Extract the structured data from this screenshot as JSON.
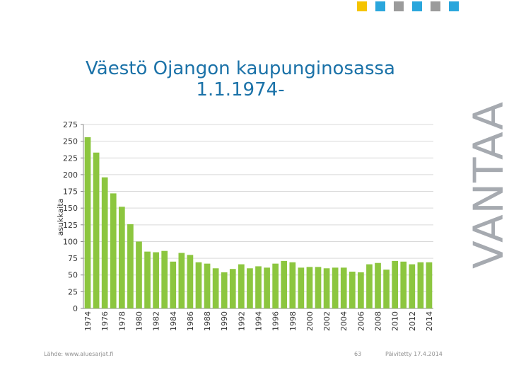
{
  "slide": {
    "title_line1": "Väestö Ojangon kaupunginosassa",
    "title_line2": "1.1.1974-",
    "brand": "VANTAA",
    "source": "Lähde: www.aluesarjat.fi",
    "page_number": "63",
    "updated": "Päivitetty 17.4.2014",
    "colors": [
      "#f5c400",
      "#2aa6dc",
      "#9b9b9b",
      "#2aa6dc",
      "#9b9b9b",
      "#2aa6dc"
    ]
  },
  "chart_data": {
    "type": "bar",
    "title": "",
    "ylabel": "asukkaita",
    "xlabel": "",
    "ylim": [
      0,
      275
    ],
    "yticks": [
      0,
      25,
      50,
      75,
      100,
      125,
      150,
      175,
      200,
      225,
      250,
      275
    ],
    "grid": true,
    "legend": "none",
    "bar_color": "#8cc63f",
    "x_tick_labels": [
      "1974",
      "1976",
      "1978",
      "1980",
      "1982",
      "1984",
      "1986",
      "1988",
      "1990",
      "1992",
      "1994",
      "1996",
      "1998",
      "2000",
      "2002",
      "2004",
      "2006",
      "2008",
      "2010",
      "2012",
      "2014"
    ],
    "categories": [
      "1974",
      "1975",
      "1976",
      "1977",
      "1978",
      "1979",
      "1980",
      "1981",
      "1982",
      "1983",
      "1984",
      "1985",
      "1986",
      "1987",
      "1988",
      "1989",
      "1990",
      "1991",
      "1992",
      "1993",
      "1994",
      "1995",
      "1996",
      "1997",
      "1998",
      "1999",
      "2000",
      "2001",
      "2002",
      "2003",
      "2004",
      "2005",
      "2006",
      "2007",
      "2008",
      "2009",
      "2010",
      "2011",
      "2012",
      "2013",
      "2014"
    ],
    "values": [
      256,
      233,
      196,
      172,
      152,
      126,
      100,
      85,
      84,
      86,
      70,
      83,
      80,
      69,
      67,
      60,
      54,
      59,
      66,
      60,
      63,
      61,
      67,
      71,
      69,
      61,
      62,
      62,
      60,
      61,
      61,
      55,
      54,
      66,
      68,
      58,
      71,
      70,
      66,
      69,
      69
    ]
  }
}
